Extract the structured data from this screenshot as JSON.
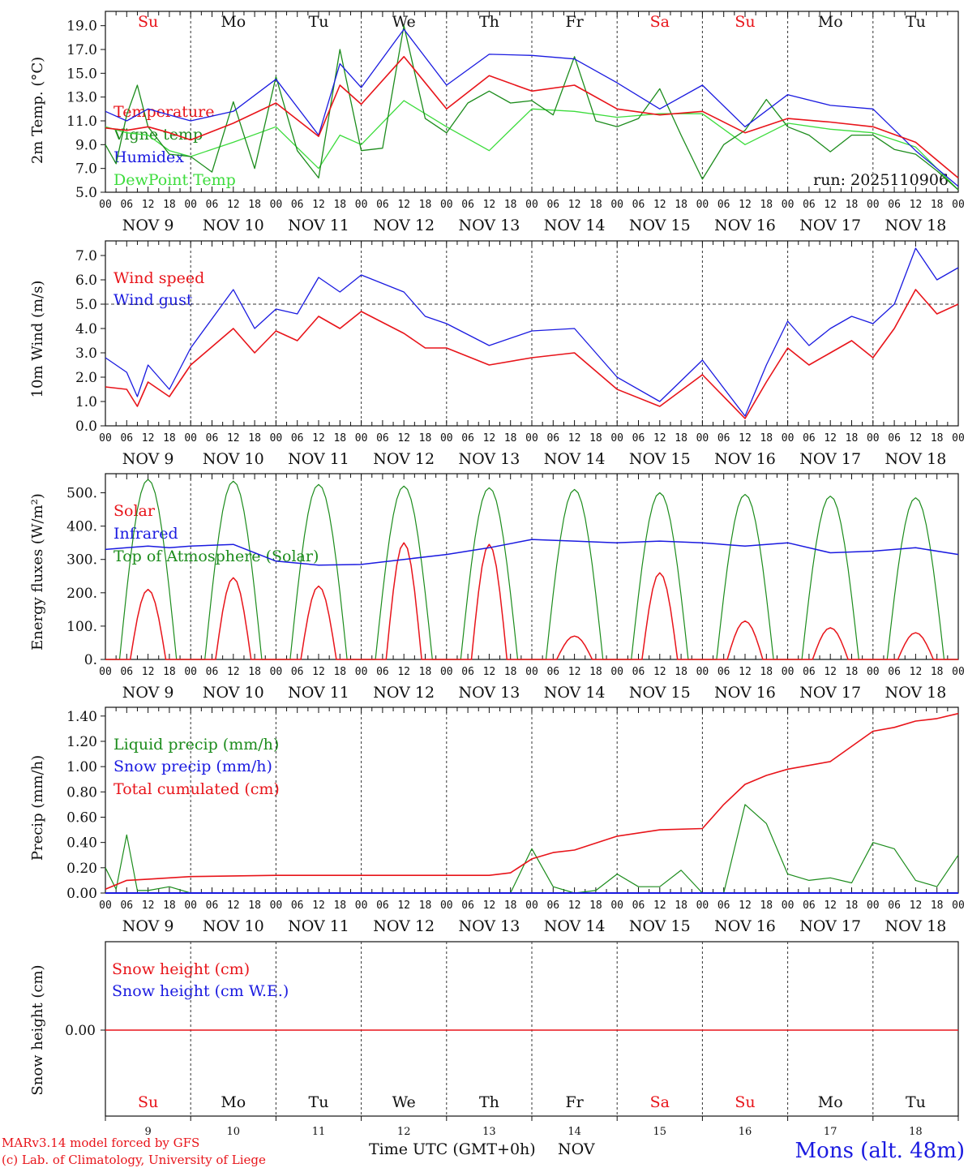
{
  "colors": {
    "red": "#e8141a",
    "blue": "#1a1ae0",
    "green": "#1c8c1c",
    "lightgreen": "#3cdc3c",
    "black": "#111111"
  },
  "days": [
    "Su",
    "Mo",
    "Tu",
    "We",
    "Th",
    "Fr",
    "Sa",
    "Su",
    "Mo",
    "Tu"
  ],
  "weekend_flags": [
    true,
    false,
    false,
    false,
    false,
    false,
    true,
    true,
    false,
    false
  ],
  "date_labels": [
    "NOV  9",
    "NOV 10",
    "NOV 11",
    "NOV 12",
    "NOV 13",
    "NOV 14",
    "NOV 15",
    "NOV 16",
    "NOV 17",
    "NOV 18"
  ],
  "hour_labels": [
    "00",
    "06",
    "12",
    "18"
  ],
  "final_hour_label": "00",
  "bottom_day_numbers": [
    "9",
    "10",
    "11",
    "12",
    "13",
    "14",
    "15",
    "16",
    "17",
    "18"
  ],
  "footer": {
    "credit_line1": "MARv3.14 model forced by GFS",
    "credit_line2": "(c) Lab. of Climatology, University of Liege",
    "axis_title": "Time UTC (GMT+0h)",
    "month": "NOV",
    "station": "Mons (alt. 48m)"
  },
  "chart_data": [
    {
      "type": "line",
      "title": "",
      "ylabel": "2m Temp. (°C)",
      "ylim": [
        5.0,
        20.0
      ],
      "yticks": [
        "5.0",
        "7.0",
        "9.0",
        "11.0",
        "13.0",
        "15.0",
        "17.0",
        "19.0"
      ],
      "annotation": "run: 2025110906",
      "x_unit": "hours from NOV 9 00 UTC",
      "series": [
        {
          "name": "Temperature",
          "color": "red",
          "x": [
            0,
            6,
            12,
            18,
            24,
            36,
            48,
            60,
            66,
            72,
            84,
            96,
            108,
            120,
            132,
            144,
            156,
            168,
            180,
            192,
            204,
            216,
            228,
            240
          ],
          "values": [
            10.4,
            10.2,
            10.5,
            10.0,
            9.4,
            10.8,
            12.5,
            9.7,
            14.0,
            12.4,
            16.4,
            12.0,
            14.8,
            13.5,
            14.0,
            12.0,
            11.5,
            11.8,
            10.0,
            11.2,
            10.9,
            10.5,
            9.2,
            6.2
          ]
        },
        {
          "name": "Vigne temp",
          "color": "green",
          "x": [
            0,
            3,
            6,
            9,
            12,
            18,
            24,
            30,
            36,
            39,
            42,
            48,
            54,
            60,
            66,
            72,
            78,
            84,
            90,
            96,
            102,
            108,
            114,
            120,
            126,
            132,
            138,
            144,
            150,
            156,
            162,
            168,
            174,
            180,
            186,
            192,
            198,
            204,
            210,
            216,
            222,
            228,
            234,
            240
          ],
          "values": [
            9.0,
            7.4,
            11.5,
            14.0,
            10.5,
            8.2,
            8.0,
            6.7,
            12.6,
            9.8,
            7.0,
            14.7,
            8.5,
            6.2,
            17.0,
            8.5,
            8.7,
            19.0,
            11.2,
            10.0,
            12.5,
            13.5,
            12.5,
            12.7,
            11.5,
            16.4,
            11.0,
            10.5,
            11.2,
            13.7,
            9.8,
            6.1,
            9.0,
            10.2,
            12.8,
            10.5,
            9.8,
            8.4,
            9.8,
            9.8,
            8.6,
            8.2,
            6.8,
            5.2
          ]
        },
        {
          "name": "Humidex",
          "color": "blue",
          "x": [
            0,
            6,
            12,
            18,
            24,
            36,
            48,
            60,
            66,
            72,
            84,
            96,
            108,
            120,
            132,
            144,
            156,
            168,
            180,
            192,
            204,
            216,
            228,
            240
          ],
          "values": [
            11.8,
            11.0,
            12.0,
            11.5,
            11.0,
            11.8,
            14.5,
            9.8,
            15.8,
            13.8,
            18.7,
            14.0,
            16.6,
            16.5,
            16.2,
            14.2,
            12.0,
            14.0,
            10.5,
            13.2,
            12.3,
            12.0,
            8.5,
            5.5
          ]
        },
        {
          "name": "DewPoint Temp",
          "color": "lightgreen",
          "x": [
            0,
            6,
            12,
            18,
            24,
            36,
            48,
            60,
            66,
            72,
            84,
            96,
            108,
            120,
            132,
            144,
            156,
            168,
            180,
            192,
            204,
            216,
            228,
            240
          ],
          "values": [
            10.5,
            10.0,
            9.8,
            8.5,
            8.0,
            9.2,
            10.5,
            7.0,
            9.8,
            9.0,
            12.7,
            10.5,
            8.5,
            12.0,
            11.8,
            11.3,
            11.6,
            11.6,
            9.0,
            10.8,
            10.3,
            10.0,
            8.8,
            5.2
          ]
        }
      ]
    },
    {
      "type": "line",
      "title": "",
      "ylabel": "10m Wind (m/s)",
      "ylim": [
        0.0,
        7.5
      ],
      "yticks": [
        "0.0",
        "1.0",
        "2.0",
        "3.0",
        "4.0",
        "5.0",
        "6.0",
        "7.0"
      ],
      "reference_line": 5.0,
      "series": [
        {
          "name": "Wind speed",
          "color": "red",
          "x": [
            0,
            6,
            9,
            12,
            18,
            24,
            36,
            42,
            48,
            54,
            60,
            66,
            72,
            84,
            90,
            96,
            108,
            120,
            132,
            144,
            156,
            168,
            180,
            186,
            192,
            198,
            204,
            210,
            216,
            222,
            228,
            234,
            240
          ],
          "values": [
            1.6,
            1.5,
            0.8,
            1.8,
            1.2,
            2.5,
            4.0,
            3.0,
            3.9,
            3.5,
            4.5,
            4.0,
            4.7,
            3.8,
            3.2,
            3.2,
            2.5,
            2.8,
            3.0,
            1.5,
            0.8,
            2.1,
            0.3,
            1.8,
            3.2,
            2.5,
            3.0,
            3.5,
            2.8,
            4.0,
            5.6,
            4.6,
            5.0
          ]
        },
        {
          "name": "Wind gust",
          "color": "blue",
          "x": [
            0,
            6,
            9,
            12,
            18,
            24,
            36,
            42,
            48,
            54,
            60,
            66,
            72,
            84,
            90,
            96,
            108,
            120,
            132,
            144,
            156,
            168,
            180,
            186,
            192,
            198,
            204,
            210,
            216,
            222,
            228,
            234,
            240
          ],
          "values": [
            2.8,
            2.2,
            1.2,
            2.5,
            1.5,
            3.2,
            5.6,
            4.0,
            4.8,
            4.6,
            6.1,
            5.5,
            6.2,
            5.5,
            4.5,
            4.2,
            3.3,
            3.9,
            4.0,
            2.0,
            1.0,
            2.7,
            0.4,
            2.5,
            4.3,
            3.3,
            4.0,
            4.5,
            4.2,
            5.0,
            7.3,
            6.0,
            6.5
          ]
        }
      ]
    },
    {
      "type": "line",
      "title": "",
      "ylabel": "Energy fluxes (W/m²)",
      "ylim": [
        0,
        550
      ],
      "yticks": [
        "0.",
        "100.",
        "200.",
        "300.",
        "400.",
        "500."
      ],
      "series": [
        {
          "name": "Solar",
          "color": "red",
          "daily_peaks": [
            210,
            245,
            220,
            350,
            345,
            70,
            260,
            115,
            95,
            80
          ]
        },
        {
          "name": "Infrared",
          "color": "blue",
          "x": [
            0,
            6,
            12,
            18,
            24,
            36,
            48,
            60,
            72,
            84,
            96,
            108,
            120,
            132,
            144,
            156,
            168,
            180,
            192,
            204,
            216,
            228,
            240
          ],
          "values": [
            330,
            335,
            340,
            335,
            340,
            345,
            295,
            283,
            285,
            300,
            315,
            335,
            360,
            355,
            350,
            355,
            350,
            340,
            350,
            320,
            325,
            335,
            315
          ]
        },
        {
          "name": "Top of Atmosphere (Solar)",
          "color": "green",
          "daily_peaks": [
            540,
            535,
            525,
            520,
            515,
            510,
            500,
            495,
            490,
            485
          ]
        }
      ]
    },
    {
      "type": "line",
      "title": "",
      "ylabel": "Precip (mm/h)",
      "ylim": [
        0.0,
        1.45
      ],
      "yticks": [
        "0.00",
        "0.20",
        "0.40",
        "0.60",
        "0.80",
        "1.00",
        "1.20",
        "1.40"
      ],
      "series": [
        {
          "name": "Liquid precip (mm/h)",
          "color": "green",
          "x": [
            0,
            3,
            6,
            9,
            12,
            18,
            24,
            114,
            120,
            126,
            132,
            138,
            144,
            150,
            156,
            162,
            168,
            174,
            180,
            186,
            192,
            198,
            204,
            210,
            216,
            222,
            228,
            234,
            240
          ],
          "values": [
            0.2,
            0.03,
            0.46,
            0.02,
            0.02,
            0.05,
            0.0,
            0.0,
            0.35,
            0.05,
            0.0,
            0.02,
            0.15,
            0.05,
            0.05,
            0.18,
            0.0,
            0.0,
            0.7,
            0.55,
            0.15,
            0.1,
            0.12,
            0.08,
            0.4,
            0.35,
            0.1,
            0.05,
            0.3
          ]
        },
        {
          "name": "Snow precip (mm/h)",
          "color": "blue",
          "x": [
            0,
            240
          ],
          "values": [
            0.0,
            0.0
          ]
        },
        {
          "name": "Total cumulated (cm)",
          "color": "red",
          "x": [
            0,
            6,
            12,
            18,
            24,
            48,
            72,
            96,
            108,
            114,
            120,
            126,
            132,
            144,
            156,
            168,
            174,
            180,
            186,
            192,
            204,
            216,
            222,
            228,
            234,
            240
          ],
          "values": [
            0.03,
            0.1,
            0.11,
            0.12,
            0.13,
            0.14,
            0.14,
            0.14,
            0.14,
            0.16,
            0.27,
            0.32,
            0.34,
            0.45,
            0.5,
            0.51,
            0.7,
            0.86,
            0.93,
            0.98,
            1.04,
            1.28,
            1.31,
            1.36,
            1.38,
            1.42
          ]
        }
      ]
    },
    {
      "type": "line",
      "title": "",
      "ylabel": "Snow height (cm)",
      "ytick": "0.00",
      "series": [
        {
          "name": "Snow height (cm)",
          "color": "red",
          "x": [
            0,
            240
          ],
          "values": [
            0.0,
            0.0
          ]
        },
        {
          "name": "Snow height (cm W.E.)",
          "color": "blue",
          "x": [
            0,
            240
          ],
          "values": [
            0.0,
            0.0
          ]
        }
      ]
    }
  ]
}
